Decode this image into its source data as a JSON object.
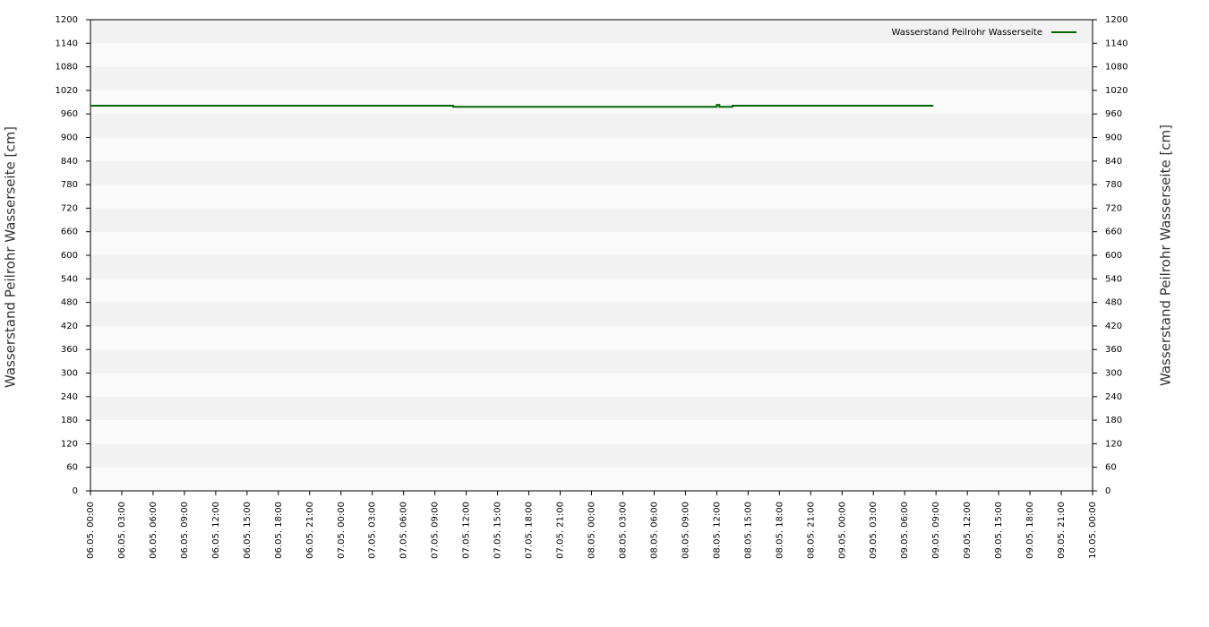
{
  "chart_data": {
    "type": "line",
    "ylabel": "Wasserstand Peilrohr Wasserseite [cm]",
    "y2label": "Wasserstand Peilrohr Wasserseite [cm]",
    "x": [
      "06.05. 00:00",
      "07.05. 10:45",
      "07.05. 10:45",
      "08.05. 12:00",
      "08.05. 12:00",
      "08.05. 12:15",
      "08.05. 12:15",
      "08.05. 13:30",
      "08.05. 13:30",
      "09.05. 08:45"
    ],
    "series": [
      {
        "name": "Wasserstand Peilrohr Wasserseite",
        "color": "#006600",
        "values": [
          981,
          981,
          978,
          978,
          983,
          983,
          978,
          978,
          981,
          981
        ]
      }
    ],
    "xlim": [
      "06.05. 00:00",
      "10.05. 00:00"
    ],
    "xticks": [
      "06.05. 00:00",
      "06.05. 03:00",
      "06.05. 06:00",
      "06.05. 09:00",
      "06.05. 12:00",
      "06.05. 15:00",
      "06.05. 18:00",
      "06.05. 21:00",
      "07.05. 00:00",
      "07.05. 03:00",
      "07.05. 06:00",
      "07.05. 09:00",
      "07.05. 12:00",
      "07.05. 15:00",
      "07.05. 18:00",
      "07.05. 21:00",
      "08.05. 00:00",
      "08.05. 03:00",
      "08.05. 06:00",
      "08.05. 09:00",
      "08.05. 12:00",
      "08.05. 15:00",
      "08.05. 18:00",
      "08.05. 21:00",
      "09.05. 00:00",
      "09.05. 03:00",
      "09.05. 06:00",
      "09.05. 09:00",
      "09.05. 12:00",
      "09.05. 15:00",
      "09.05. 18:00",
      "09.05. 21:00",
      "10.05. 00:00"
    ],
    "ylim": [
      0,
      1200
    ],
    "yticks": [
      0,
      60,
      120,
      180,
      240,
      300,
      360,
      420,
      480,
      540,
      600,
      660,
      720,
      780,
      840,
      900,
      960,
      1020,
      1080,
      1140,
      1200
    ],
    "y2lim": [
      0,
      1200
    ],
    "y2ticks": [
      0,
      60,
      120,
      180,
      240,
      300,
      360,
      420,
      480,
      540,
      600,
      660,
      720,
      780,
      840,
      900,
      960,
      1020,
      1080,
      1140,
      1200
    ],
    "legend": "upper right"
  }
}
